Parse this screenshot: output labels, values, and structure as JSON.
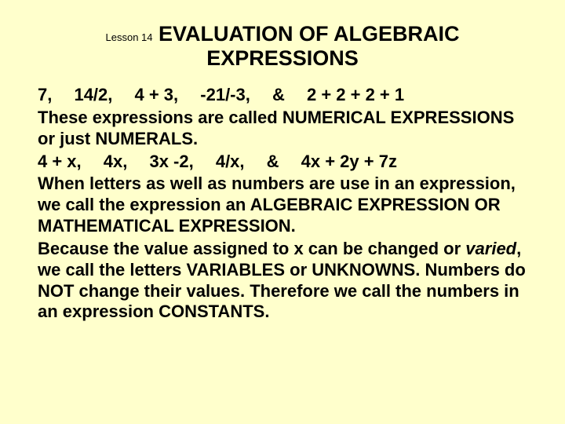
{
  "background_color": "#ffffcc",
  "text_color": "#000000",
  "title": {
    "prefix": "Lesson 14",
    "main_line1": " EVALUATION OF ALGEBRAIC",
    "main_line2": "EXPRESSIONS",
    "prefix_fontsize": 13,
    "main_fontsize": 27,
    "main_weight": "bold"
  },
  "body": {
    "fontsize": 22,
    "weight": "bold",
    "line_height": 1.22,
    "p1": "7,  14/2,  4 + 3,  -21/-3,  &  2 + 2 + 2 + 1",
    "p2": "These expressions are called NUMERICAL EXPRESSIONS or just NUMERALS.",
    "p3": "4 + x,  4x,  3x -2,  4/x,  &  4x + 2y + 7z",
    "p4": "When letters as well as numbers are use in an expression, we call the expression an ALGEBRAIC EXPRESSION OR MATHEMATICAL EXPRESSION.",
    "p5a": "Because the value assigned to x can be changed or ",
    "p5_italic": "varied",
    "p5b": ", we call the letters VARIABLES or UNKNOWNS. Numbers do NOT change their values. Therefore we call the numbers in an expression CONSTANTS."
  }
}
